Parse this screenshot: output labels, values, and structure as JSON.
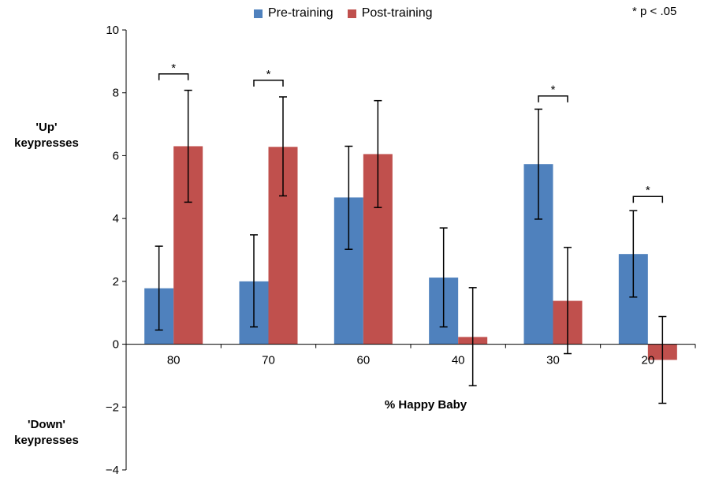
{
  "chart_data": {
    "type": "bar",
    "xlabel": "% Happy Baby",
    "ylabel_up": "'Up' keypresses",
    "ylabel_up_lines": [
      "'Up'",
      "keypresses"
    ],
    "ylabel_down_lines": [
      "'Down'",
      "keypresses"
    ],
    "categories": [
      "80",
      "70",
      "60",
      "40",
      "30",
      "20"
    ],
    "ylim": [
      -4,
      10
    ],
    "yticks": [
      -4,
      -2,
      0,
      2,
      4,
      6,
      8,
      10
    ],
    "series": [
      {
        "name": "Pre-training",
        "color": "#4f81bd",
        "values": [
          1.78,
          2.0,
          4.67,
          2.12,
          5.73,
          2.87
        ],
        "err_low": [
          0.45,
          0.55,
          3.02,
          0.55,
          3.98,
          1.5
        ],
        "err_high": [
          3.12,
          3.48,
          6.3,
          3.7,
          7.48,
          4.25
        ]
      },
      {
        "name": "Post-training",
        "color": "#c0504d",
        "values": [
          6.3,
          6.28,
          6.05,
          0.23,
          1.38,
          -0.5
        ],
        "err_low": [
          4.52,
          4.72,
          4.35,
          -1.32,
          -0.3,
          -1.88
        ],
        "err_high": [
          8.08,
          7.87,
          7.75,
          1.8,
          3.08,
          0.88
        ]
      }
    ],
    "significance_markers": [
      {
        "category": "80",
        "label": "*",
        "bracket_y": 8.6
      },
      {
        "category": "70",
        "label": "*",
        "bracket_y": 8.4
      },
      {
        "category": "30",
        "label": "*",
        "bracket_y": 7.9
      },
      {
        "category": "20",
        "label": "*",
        "bracket_y": 4.7
      }
    ],
    "annotation": "* p < .05",
    "legend_position": "top-center",
    "grid": false
  }
}
